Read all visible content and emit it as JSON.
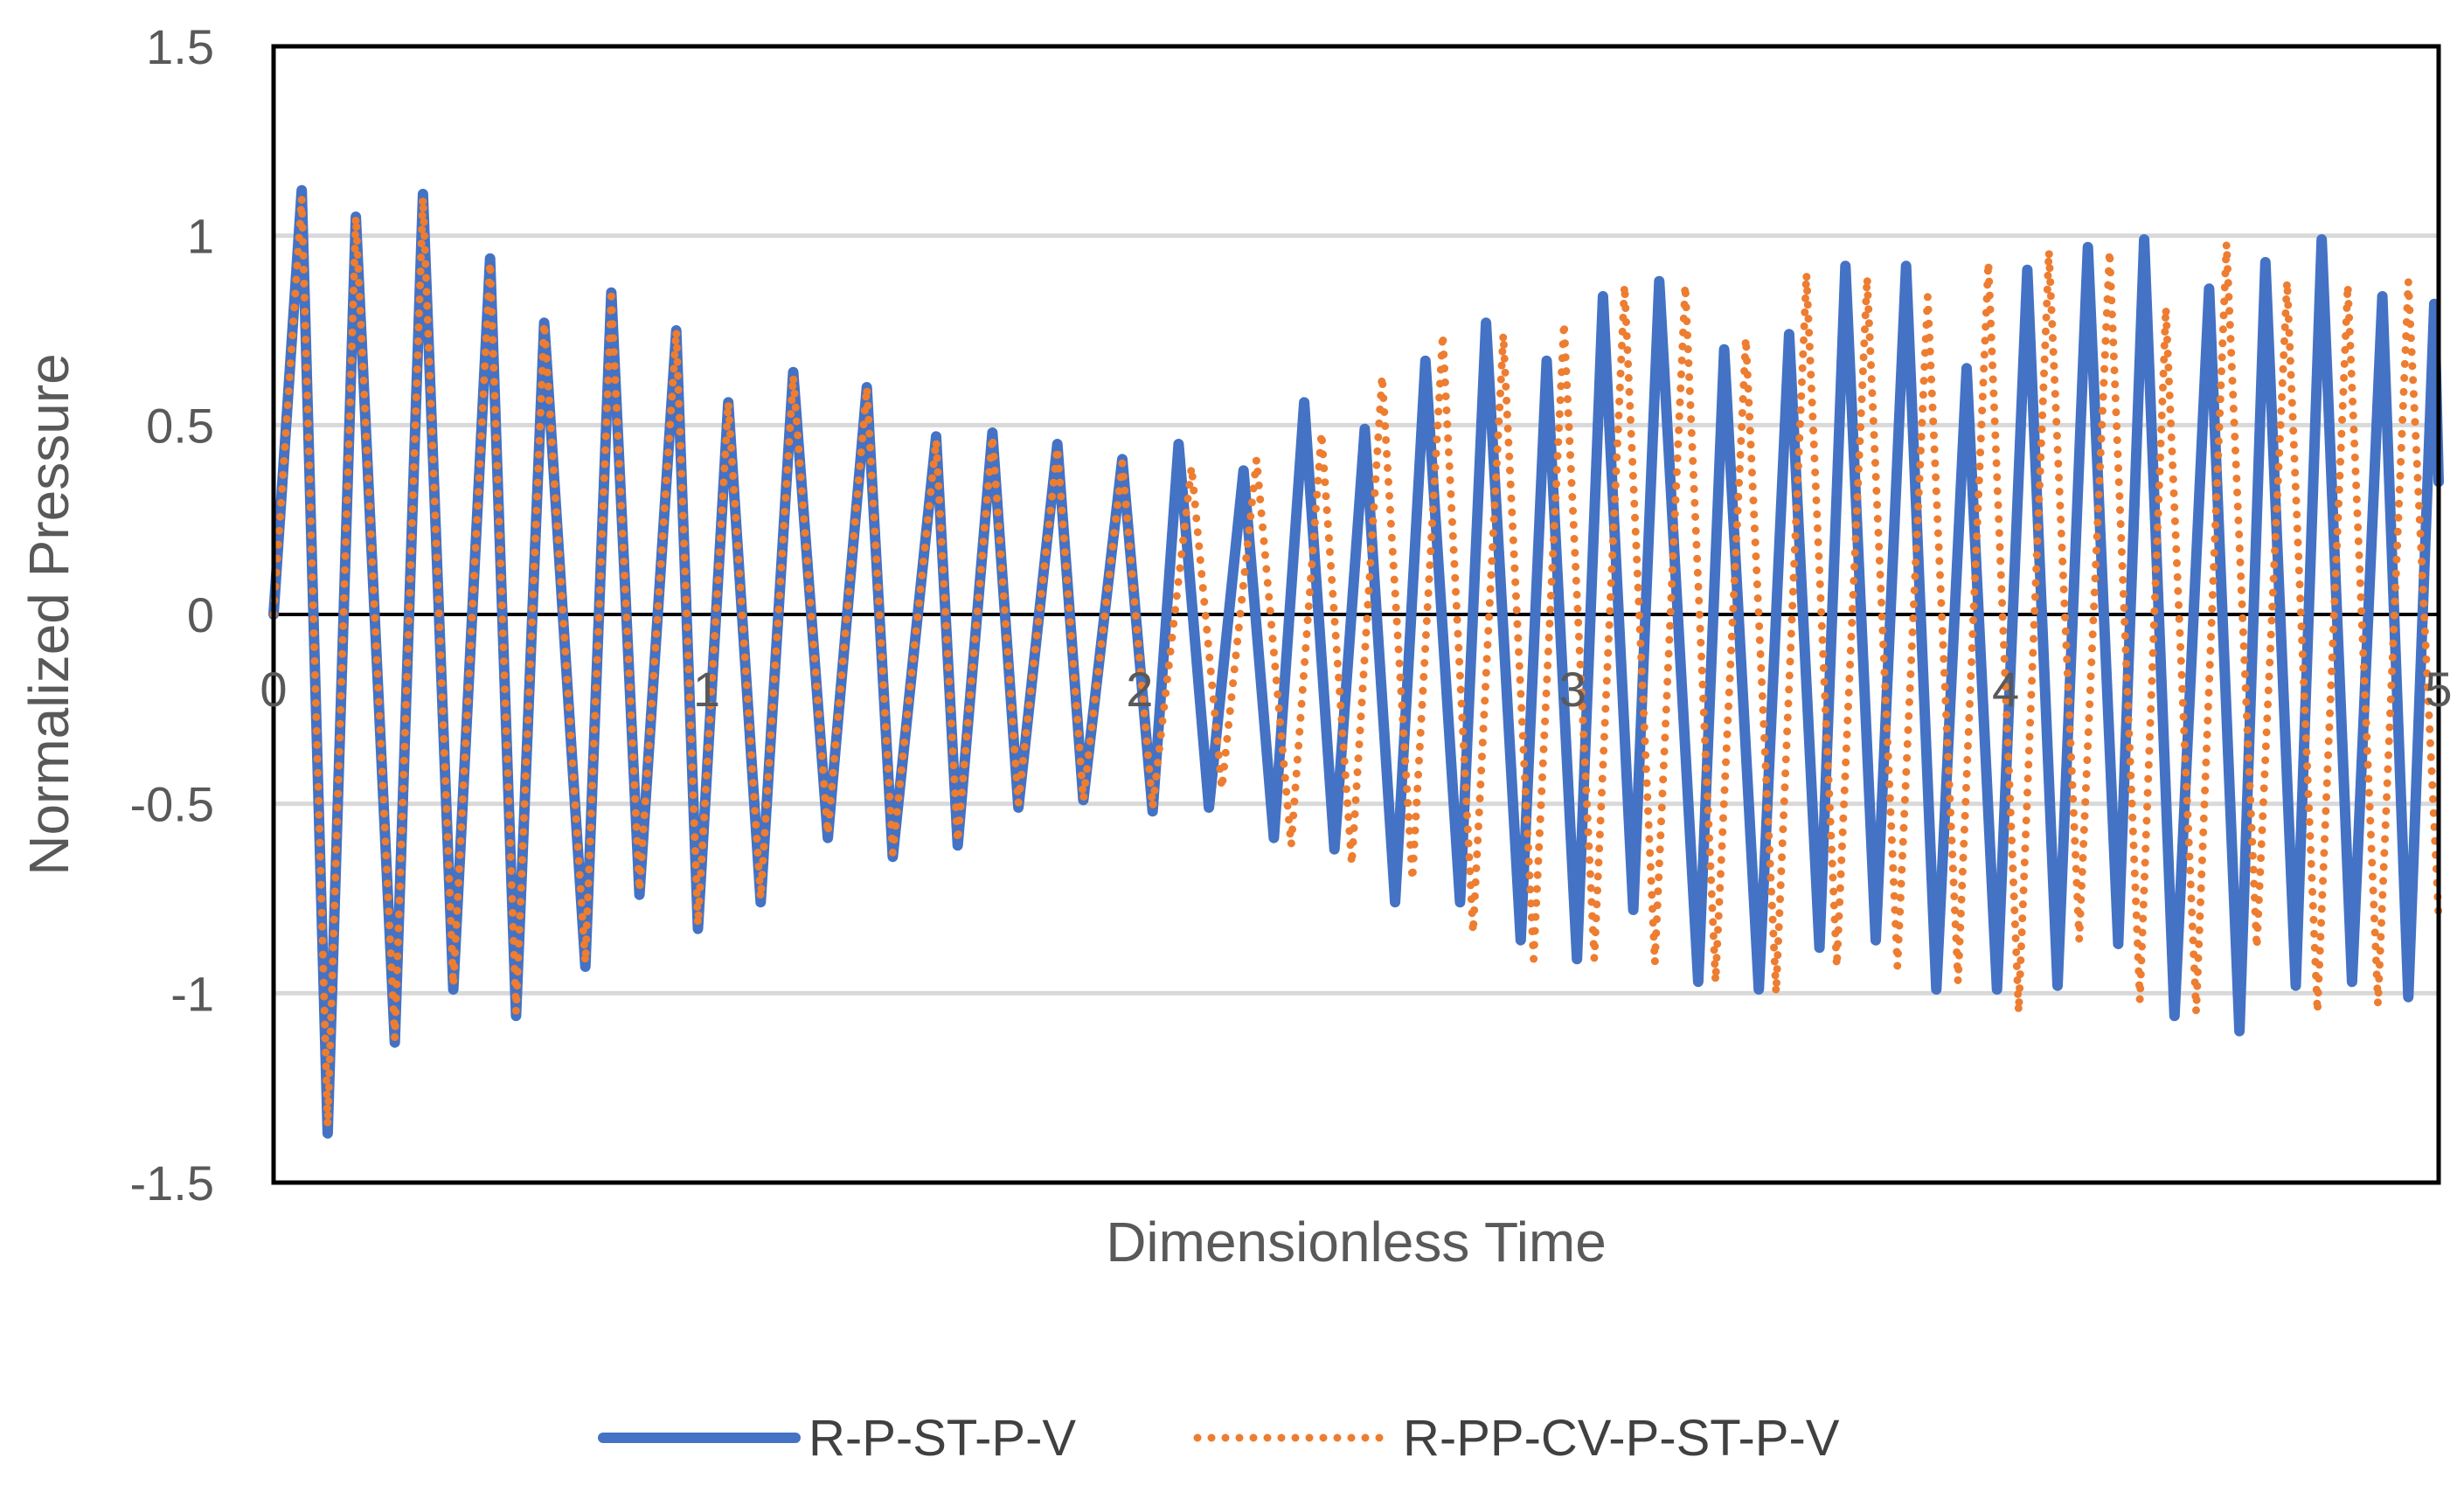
{
  "chart_data": {
    "type": "line",
    "title": "",
    "xlabel": "Dimensionless Time",
    "ylabel": "Normalized Pressure",
    "xlim": [
      0,
      5
    ],
    "ylim": [
      -1.5,
      1.5
    ],
    "x_ticks": [
      0,
      1,
      2,
      3,
      4,
      5
    ],
    "x_tick_labels": [
      "0",
      "1",
      "2",
      "3",
      "4",
      "5"
    ],
    "y_ticks": [
      1.5,
      1,
      0.5,
      0,
      -0.5,
      -1,
      -1.5
    ],
    "y_tick_labels": [
      "1.5",
      "1",
      "0.5",
      "0",
      "-0.5",
      "-1",
      "-1.5"
    ],
    "grid": "horizontal",
    "legend_position": "bottom",
    "colors": {
      "series1": "#4472C4",
      "series2": "#ED7D31",
      "grid": "#D9D9D9",
      "axis": "#000000"
    },
    "series": [
      {
        "name": "R-P-ST-P-V",
        "style": "solid",
        "color": "#4472C4",
        "peaks": [
          [
            0,
            0
          ],
          [
            0.065,
            1.12
          ],
          [
            0.125,
            -1.37
          ],
          [
            0.19,
            1.05
          ],
          [
            0.28,
            -1.13
          ],
          [
            0.345,
            1.11
          ],
          [
            0.415,
            -0.99
          ],
          [
            0.5,
            0.94
          ],
          [
            0.56,
            -1.06
          ],
          [
            0.625,
            0.77
          ],
          [
            0.72,
            -0.93
          ],
          [
            0.78,
            0.85
          ],
          [
            0.845,
            -0.74
          ],
          [
            0.93,
            0.75
          ],
          [
            0.98,
            -0.83
          ],
          [
            1.05,
            0.56
          ],
          [
            1.125,
            -0.76
          ],
          [
            1.2,
            0.64
          ],
          [
            1.28,
            -0.59
          ],
          [
            1.37,
            0.6
          ],
          [
            1.43,
            -0.64
          ],
          [
            1.53,
            0.47
          ],
          [
            1.58,
            -0.61
          ],
          [
            1.66,
            0.48
          ],
          [
            1.72,
            -0.51
          ],
          [
            1.81,
            0.45
          ],
          [
            1.87,
            -0.49
          ],
          [
            1.96,
            0.41
          ],
          [
            2.03,
            -0.52
          ],
          [
            2.09,
            0.45
          ],
          [
            2.16,
            -0.51
          ],
          [
            2.24,
            0.38
          ],
          [
            2.31,
            -0.59
          ],
          [
            2.38,
            0.56
          ],
          [
            2.45,
            -0.62
          ],
          [
            2.52,
            0.49
          ],
          [
            2.59,
            -0.76
          ],
          [
            2.66,
            0.67
          ],
          [
            2.74,
            -0.76
          ],
          [
            2.8,
            0.77
          ],
          [
            2.88,
            -0.86
          ],
          [
            2.94,
            0.67
          ],
          [
            3.01,
            -0.91
          ],
          [
            3.07,
            0.84
          ],
          [
            3.14,
            -0.78
          ],
          [
            3.2,
            0.88
          ],
          [
            3.29,
            -0.97
          ],
          [
            3.35,
            0.7
          ],
          [
            3.43,
            -0.99
          ],
          [
            3.5,
            0.74
          ],
          [
            3.57,
            -0.88
          ],
          [
            3.63,
            0.92
          ],
          [
            3.7,
            -0.86
          ],
          [
            3.77,
            0.92
          ],
          [
            3.84,
            -0.99
          ],
          [
            3.91,
            0.65
          ],
          [
            3.98,
            -0.99
          ],
          [
            4.05,
            0.91
          ],
          [
            4.12,
            -0.98
          ],
          [
            4.19,
            0.97
          ],
          [
            4.26,
            -0.87
          ],
          [
            4.32,
            0.99
          ],
          [
            4.39,
            -1.06
          ],
          [
            4.47,
            0.86
          ],
          [
            4.54,
            -1.1
          ],
          [
            4.6,
            0.93
          ],
          [
            4.67,
            -0.98
          ],
          [
            4.73,
            0.99
          ],
          [
            4.8,
            -0.97
          ],
          [
            4.87,
            0.84
          ],
          [
            4.93,
            -1.01
          ],
          [
            4.99,
            0.82
          ],
          [
            5.0,
            0.35
          ]
        ]
      },
      {
        "name": "R-PP-CV-P-ST-P-V",
        "style": "dotted",
        "color": "#ED7D31",
        "peaks": [
          [
            0,
            0
          ],
          [
            0.065,
            1.1
          ],
          [
            0.125,
            -1.35
          ],
          [
            0.19,
            1.05
          ],
          [
            0.28,
            -1.12
          ],
          [
            0.345,
            1.1
          ],
          [
            0.415,
            -0.98
          ],
          [
            0.5,
            0.93
          ],
          [
            0.56,
            -1.05
          ],
          [
            0.625,
            0.77
          ],
          [
            0.72,
            -0.92
          ],
          [
            0.78,
            0.84
          ],
          [
            0.845,
            -0.73
          ],
          [
            0.93,
            0.75
          ],
          [
            0.98,
            -0.82
          ],
          [
            1.05,
            0.56
          ],
          [
            1.125,
            -0.75
          ],
          [
            1.2,
            0.63
          ],
          [
            1.28,
            -0.58
          ],
          [
            1.37,
            0.6
          ],
          [
            1.43,
            -0.63
          ],
          [
            1.53,
            0.46
          ],
          [
            1.58,
            -0.6
          ],
          [
            1.66,
            0.47
          ],
          [
            1.72,
            -0.5
          ],
          [
            1.81,
            0.44
          ],
          [
            1.87,
            -0.49
          ],
          [
            1.96,
            0.4
          ],
          [
            2.03,
            -0.51
          ],
          [
            2.12,
            0.39
          ],
          [
            2.19,
            -0.46
          ],
          [
            2.27,
            0.41
          ],
          [
            2.35,
            -0.61
          ],
          [
            2.42,
            0.48
          ],
          [
            2.49,
            -0.66
          ],
          [
            2.56,
            0.63
          ],
          [
            2.63,
            -0.7
          ],
          [
            2.7,
            0.74
          ],
          [
            2.77,
            -0.84
          ],
          [
            2.84,
            0.74
          ],
          [
            2.91,
            -0.91
          ],
          [
            2.98,
            0.77
          ],
          [
            3.05,
            -0.91
          ],
          [
            3.12,
            0.87
          ],
          [
            3.19,
            -0.92
          ],
          [
            3.26,
            0.87
          ],
          [
            3.33,
            -0.97
          ],
          [
            3.4,
            0.73
          ],
          [
            3.47,
            -1.0
          ],
          [
            3.54,
            0.9
          ],
          [
            3.61,
            -0.93
          ],
          [
            3.68,
            0.89
          ],
          [
            3.75,
            -0.93
          ],
          [
            3.82,
            0.84
          ],
          [
            3.89,
            -0.97
          ],
          [
            3.96,
            0.93
          ],
          [
            4.03,
            -1.05
          ],
          [
            4.1,
            0.96
          ],
          [
            4.17,
            -0.86
          ],
          [
            4.24,
            0.96
          ],
          [
            4.31,
            -1.02
          ],
          [
            4.37,
            0.81
          ],
          [
            4.44,
            -1.05
          ],
          [
            4.51,
            0.98
          ],
          [
            4.58,
            -0.88
          ],
          [
            4.65,
            0.88
          ],
          [
            4.72,
            -1.05
          ],
          [
            4.79,
            0.87
          ],
          [
            4.86,
            -1.03
          ],
          [
            4.93,
            0.88
          ],
          [
            5.0,
            -0.8
          ]
        ]
      }
    ]
  }
}
